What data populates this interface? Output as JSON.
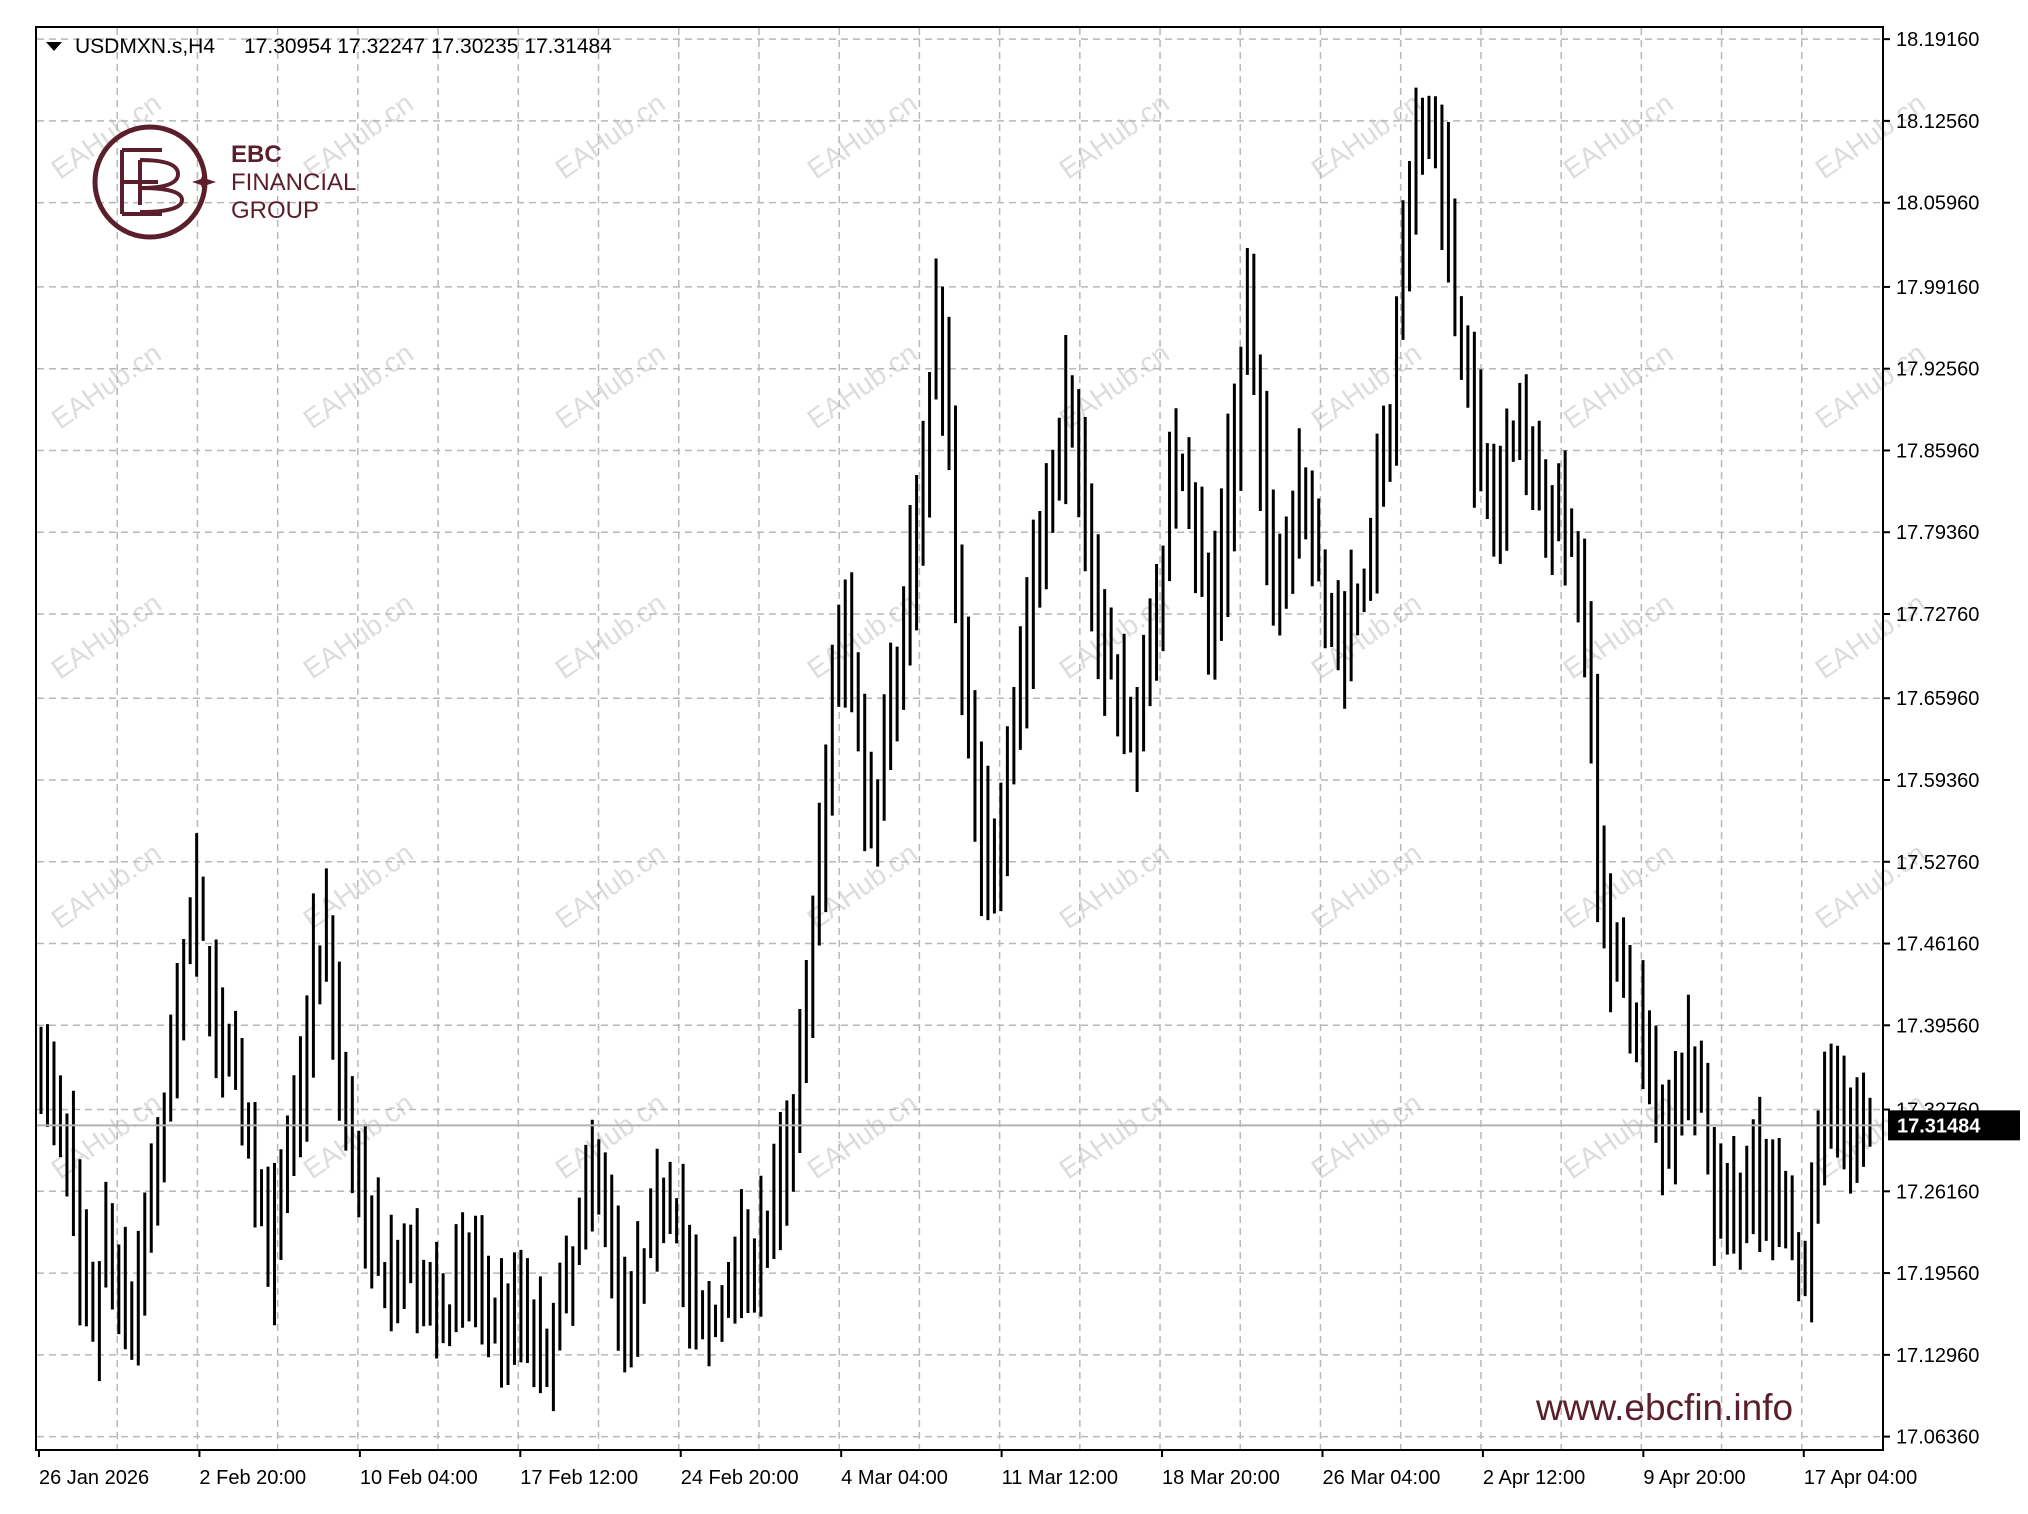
{
  "header": {
    "symbol": "USDMXN.s,H4",
    "ohlc": "17.30954 17.32247 17.30235 17.31484"
  },
  "brand": {
    "logo_line1": "EBC",
    "logo_line2": "FINANCIAL",
    "logo_line3": "GROUP",
    "website": "www.ebcfin.info",
    "watermark": "EAHub.cn",
    "color": "#5a1e2c"
  },
  "current_price": "17.31484",
  "chart_data": {
    "type": "ohlc-bar",
    "symbol": "USDMXN.s",
    "timeframe": "H4",
    "y_ticks": [
      "18.19160",
      "18.12560",
      "18.05960",
      "17.99160",
      "17.92560",
      "17.85960",
      "17.79360",
      "17.72760",
      "17.65960",
      "17.59360",
      "17.52760",
      "17.46160",
      "17.39560",
      "17.32760",
      "17.26160",
      "17.19560",
      "17.12960",
      "17.06360"
    ],
    "x_ticks": [
      "26 Jan 2026",
      "2 Feb 20:00",
      "10 Feb 04:00",
      "17 Feb 12:00",
      "24 Feb 20:00",
      "4 Mar 04:00",
      "11 Mar 12:00",
      "18 Mar 20:00",
      "26 Mar 04:00",
      "2 Apr 12:00",
      "9 Apr 20:00",
      "17 Apr 04:00"
    ],
    "ylim": [
      17.0536,
      18.2006
    ],
    "grid": true,
    "last_price": 17.31484,
    "anchors": [
      [
        0,
        17.36
      ],
      [
        2,
        17.33
      ],
      [
        4,
        17.29
      ],
      [
        6,
        17.19
      ],
      [
        8,
        17.16
      ],
      [
        10,
        17.22
      ],
      [
        12,
        17.18
      ],
      [
        14,
        17.16
      ],
      [
        16,
        17.24
      ],
      [
        18,
        17.29
      ],
      [
        20,
        17.36
      ],
      [
        22,
        17.46
      ],
      [
        24,
        17.49
      ],
      [
        26,
        17.43
      ],
      [
        28,
        17.37
      ],
      [
        30,
        17.34
      ],
      [
        32,
        17.3
      ],
      [
        34,
        17.24
      ],
      [
        36,
        17.22
      ],
      [
        38,
        17.29
      ],
      [
        40,
        17.36
      ],
      [
        42,
        17.44
      ],
      [
        44,
        17.47
      ],
      [
        46,
        17.36
      ],
      [
        48,
        17.28
      ],
      [
        50,
        17.24
      ],
      [
        52,
        17.2
      ],
      [
        54,
        17.18
      ],
      [
        56,
        17.21
      ],
      [
        58,
        17.17
      ],
      [
        60,
        17.19
      ],
      [
        62,
        17.16
      ],
      [
        64,
        17.18
      ],
      [
        66,
        17.2
      ],
      [
        68,
        17.18
      ],
      [
        70,
        17.15
      ],
      [
        72,
        17.16
      ],
      [
        74,
        17.18
      ],
      [
        76,
        17.14
      ],
      [
        78,
        17.12
      ],
      [
        80,
        17.17
      ],
      [
        82,
        17.22
      ],
      [
        84,
        17.26
      ],
      [
        86,
        17.28
      ],
      [
        88,
        17.22
      ],
      [
        90,
        17.16
      ],
      [
        92,
        17.18
      ],
      [
        94,
        17.24
      ],
      [
        96,
        17.27
      ],
      [
        98,
        17.24
      ],
      [
        100,
        17.17
      ],
      [
        102,
        17.15
      ],
      [
        104,
        17.16
      ],
      [
        106,
        17.19
      ],
      [
        108,
        17.22
      ],
      [
        110,
        17.21
      ],
      [
        112,
        17.23
      ],
      [
        114,
        17.27
      ],
      [
        116,
        17.33
      ],
      [
        118,
        17.42
      ],
      [
        120,
        17.52
      ],
      [
        122,
        17.67
      ],
      [
        124,
        17.73
      ],
      [
        126,
        17.63
      ],
      [
        128,
        17.56
      ],
      [
        130,
        17.63
      ],
      [
        132,
        17.69
      ],
      [
        134,
        17.76
      ],
      [
        136,
        17.86
      ],
      [
        138,
        17.97
      ],
      [
        140,
        17.86
      ],
      [
        142,
        17.68
      ],
      [
        144,
        17.58
      ],
      [
        146,
        17.52
      ],
      [
        148,
        17.56
      ],
      [
        150,
        17.65
      ],
      [
        152,
        17.72
      ],
      [
        154,
        17.77
      ],
      [
        156,
        17.85
      ],
      [
        158,
        17.9
      ],
      [
        160,
        17.84
      ],
      [
        162,
        17.77
      ],
      [
        164,
        17.69
      ],
      [
        166,
        17.66
      ],
      [
        168,
        17.63
      ],
      [
        170,
        17.68
      ],
      [
        172,
        17.74
      ],
      [
        174,
        17.83
      ],
      [
        176,
        17.86
      ],
      [
        178,
        17.78
      ],
      [
        180,
        17.72
      ],
      [
        182,
        17.78
      ],
      [
        184,
        17.87
      ],
      [
        186,
        17.98
      ],
      [
        188,
        17.86
      ],
      [
        190,
        17.73
      ],
      [
        192,
        17.79
      ],
      [
        194,
        17.84
      ],
      [
        196,
        17.78
      ],
      [
        198,
        17.73
      ],
      [
        200,
        17.7
      ],
      [
        202,
        17.74
      ],
      [
        204,
        17.76
      ],
      [
        206,
        17.82
      ],
      [
        208,
        17.88
      ],
      [
        210,
        18.02
      ],
      [
        212,
        18.1
      ],
      [
        214,
        18.12
      ],
      [
        216,
        18.08
      ],
      [
        218,
        17.98
      ],
      [
        220,
        17.9
      ],
      [
        222,
        17.85
      ],
      [
        224,
        17.81
      ],
      [
        226,
        17.87
      ],
      [
        228,
        17.88
      ],
      [
        230,
        17.85
      ],
      [
        232,
        17.82
      ],
      [
        234,
        17.81
      ],
      [
        236,
        17.78
      ],
      [
        238,
        17.73
      ],
      [
        240,
        17.53
      ],
      [
        242,
        17.46
      ],
      [
        244,
        17.42
      ],
      [
        246,
        17.4
      ],
      [
        248,
        17.36
      ],
      [
        250,
        17.3
      ],
      [
        252,
        17.34
      ],
      [
        254,
        17.37
      ],
      [
        256,
        17.32
      ],
      [
        258,
        17.26
      ],
      [
        260,
        17.26
      ],
      [
        262,
        17.24
      ],
      [
        264,
        17.28
      ],
      [
        266,
        17.26
      ],
      [
        268,
        17.25
      ],
      [
        270,
        17.22
      ],
      [
        272,
        17.2
      ],
      [
        274,
        17.31
      ],
      [
        276,
        17.35
      ],
      [
        278,
        17.32
      ],
      [
        280,
        17.31
      ],
      [
        282,
        17.31
      ]
    ]
  }
}
